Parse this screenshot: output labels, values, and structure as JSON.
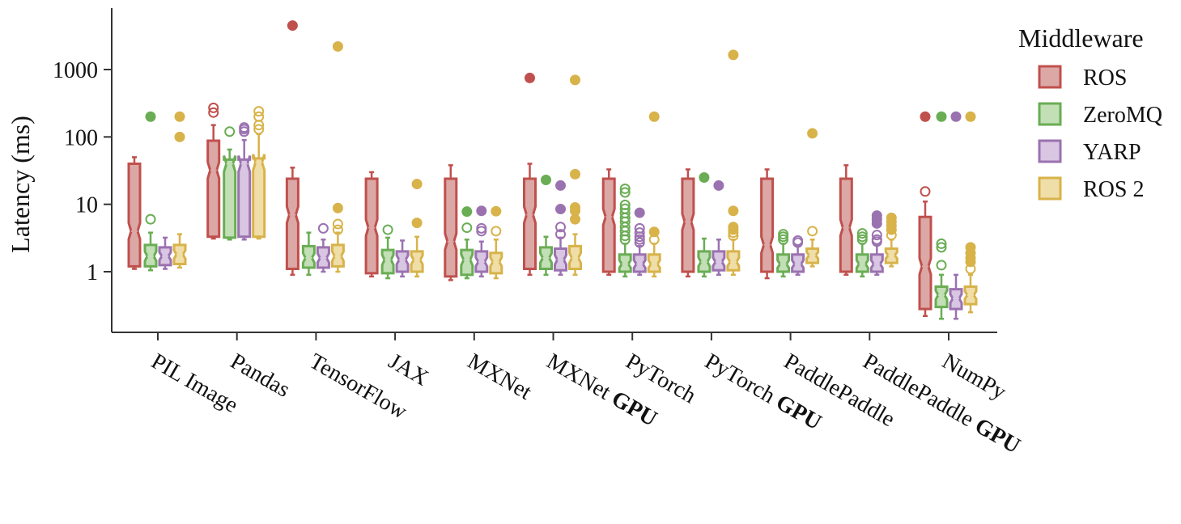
{
  "chart_data": {
    "type": "box",
    "ylabel": "Latency (ms)",
    "yscale": "log",
    "ylim": [
      0.2,
      8000
    ],
    "yticks": [
      1,
      10,
      100,
      1000
    ],
    "ytick_labels": [
      "1",
      "10",
      "100",
      "1000"
    ],
    "categories": [
      {
        "text": "PIL Image",
        "bold": ""
      },
      {
        "text": "Pandas",
        "bold": ""
      },
      {
        "text": "TensorFlow",
        "bold": ""
      },
      {
        "text": "JAX",
        "bold": ""
      },
      {
        "text": "MXNet",
        "bold": ""
      },
      {
        "text": "MXNet ",
        "bold": "GPU"
      },
      {
        "text": "PyTorch",
        "bold": ""
      },
      {
        "text": "PyTorch ",
        "bold": "GPU"
      },
      {
        "text": "PaddlePaddle",
        "bold": ""
      },
      {
        "text": "PaddlePaddle ",
        "bold": "GPU"
      },
      {
        "text": "NumPy",
        "bold": ""
      }
    ],
    "legend_title": "Middleware",
    "legend_position": "right",
    "series": [
      {
        "name": "ROS",
        "color": "#c0504d",
        "fill": "#dba8a6",
        "boxes": [
          {
            "whislo": 1.1,
            "q1": 1.2,
            "med": 4,
            "q3": 40,
            "whishi": 50,
            "outliers": [],
            "far": []
          },
          {
            "whislo": 3.1,
            "q1": 3.3,
            "med": 32,
            "q3": 88,
            "whishi": 150,
            "outliers": [
              230,
              270
            ],
            "far": []
          },
          {
            "whislo": 0.9,
            "q1": 1.1,
            "med": 7,
            "q3": 24,
            "whishi": 35,
            "outliers": [],
            "far": [
              4500
            ]
          },
          {
            "whislo": 0.85,
            "q1": 0.95,
            "med": 4.5,
            "q3": 24,
            "whishi": 30,
            "outliers": [],
            "far": []
          },
          {
            "whislo": 0.75,
            "q1": 0.85,
            "med": 2.8,
            "q3": 24,
            "whishi": 38,
            "outliers": [],
            "far": []
          },
          {
            "whislo": 0.9,
            "q1": 1.1,
            "med": 7,
            "q3": 24,
            "whishi": 40,
            "outliers": [],
            "far": [
              750
            ]
          },
          {
            "whislo": 0.9,
            "q1": 1.0,
            "med": 6.5,
            "q3": 24,
            "whishi": 33,
            "outliers": [],
            "far": []
          },
          {
            "whislo": 0.85,
            "q1": 1.0,
            "med": 5.5,
            "q3": 24,
            "whishi": 33,
            "outliers": [],
            "far": []
          },
          {
            "whislo": 0.8,
            "q1": 1.0,
            "med": 2.5,
            "q3": 24,
            "whishi": 33,
            "outliers": [],
            "far": []
          },
          {
            "whislo": 0.9,
            "q1": 1.0,
            "med": 4.5,
            "q3": 24,
            "whishi": 38,
            "outliers": [],
            "far": []
          },
          {
            "whislo": 0.22,
            "q1": 0.28,
            "med": 1.2,
            "q3": 6.5,
            "whishi": 11,
            "outliers": [
              15.5
            ],
            "far": [
              200
            ]
          }
        ]
      },
      {
        "name": "ZeroMQ",
        "color": "#6aad54",
        "fill": "#c2dfb6",
        "boxes": [
          {
            "whislo": 1.05,
            "q1": 1.2,
            "med": 1.7,
            "q3": 2.5,
            "whishi": 3.8,
            "outliers": [
              6
            ],
            "far": [
              200
            ]
          },
          {
            "whislo": 3.0,
            "q1": 3.2,
            "med": 40,
            "q3": 46,
            "whishi": 65,
            "outliers": [
              120
            ],
            "far": []
          },
          {
            "whislo": 0.9,
            "q1": 1.15,
            "med": 1.6,
            "q3": 2.4,
            "whishi": 3.8,
            "outliers": [],
            "far": []
          },
          {
            "whislo": 0.8,
            "q1": 0.95,
            "med": 1.5,
            "q3": 2.1,
            "whishi": 3.2,
            "outliers": [
              4.2
            ],
            "far": []
          },
          {
            "whislo": 0.8,
            "q1": 0.9,
            "med": 1.5,
            "q3": 2.1,
            "whishi": 3.0,
            "outliers": [
              4.5
            ],
            "far": [
              7.8
            ]
          },
          {
            "whislo": 0.9,
            "q1": 1.1,
            "med": 1.6,
            "q3": 2.3,
            "whishi": 3.3,
            "outliers": [],
            "far": [
              23
            ]
          },
          {
            "whislo": 0.85,
            "q1": 1.0,
            "med": 1.3,
            "q3": 1.8,
            "whishi": 2.6,
            "outliers": [
              3,
              3.4,
              4,
              4.6,
              5.5,
              6.3,
              7.4,
              8.6,
              9.8,
              15,
              17
            ],
            "far": []
          },
          {
            "whislo": 0.85,
            "q1": 1.0,
            "med": 1.4,
            "q3": 2.0,
            "whishi": 3.1,
            "outliers": [],
            "far": [
              25
            ]
          },
          {
            "whislo": 0.85,
            "q1": 1.0,
            "med": 1.3,
            "q3": 1.8,
            "whishi": 2.6,
            "outliers": [
              3.0,
              3.3,
              3.6
            ],
            "far": []
          },
          {
            "whislo": 0.85,
            "q1": 1.0,
            "med": 1.3,
            "q3": 1.8,
            "whishi": 2.6,
            "outliers": [
              3.0,
              3.3,
              3.7
            ],
            "far": []
          },
          {
            "whislo": 0.2,
            "q1": 0.3,
            "med": 0.45,
            "q3": 0.6,
            "whishi": 0.9,
            "outliers": [
              1.25,
              2.3,
              2.6
            ],
            "far": [
              200
            ]
          }
        ]
      },
      {
        "name": "YARP",
        "color": "#9b72b0",
        "fill": "#d8c6e2",
        "boxes": [
          {
            "whislo": 1.1,
            "q1": 1.25,
            "med": 1.7,
            "q3": 2.3,
            "whishi": 3.2,
            "outliers": [],
            "far": []
          },
          {
            "whislo": 3.0,
            "q1": 3.3,
            "med": 40,
            "q3": 46,
            "whishi": 90,
            "outliers": [
              120,
              130,
              138
            ],
            "far": []
          },
          {
            "whislo": 1.0,
            "q1": 1.15,
            "med": 1.6,
            "q3": 2.3,
            "whishi": 3.0,
            "outliers": [
              4.4
            ],
            "far": []
          },
          {
            "whislo": 0.85,
            "q1": 1.0,
            "med": 1.5,
            "q3": 2.0,
            "whishi": 2.9,
            "outliers": [],
            "far": []
          },
          {
            "whislo": 0.85,
            "q1": 1.0,
            "med": 1.4,
            "q3": 2.0,
            "whishi": 2.8,
            "outliers": [
              4.0,
              4.4
            ],
            "far": [
              8
            ]
          },
          {
            "whislo": 0.9,
            "q1": 1.05,
            "med": 1.5,
            "q3": 2.2,
            "whishi": 3.2,
            "outliers": [
              3.6,
              4.6
            ],
            "far": [
              8.5,
              19
            ]
          },
          {
            "whislo": 0.9,
            "q1": 1.0,
            "med": 1.3,
            "q3": 1.8,
            "whishi": 2.4,
            "outliers": [
              2.7,
              3.0,
              3.3,
              3.8,
              4.4
            ],
            "far": [
              7.5
            ]
          },
          {
            "whislo": 0.9,
            "q1": 1.05,
            "med": 1.4,
            "q3": 2.0,
            "whishi": 3.0,
            "outliers": [],
            "far": [
              19
            ]
          },
          {
            "whislo": 0.9,
            "q1": 1.0,
            "med": 1.3,
            "q3": 1.8,
            "whishi": 2.4,
            "outliers": [
              2.7,
              2.9
            ],
            "far": []
          },
          {
            "whislo": 0.9,
            "q1": 1.0,
            "med": 1.3,
            "q3": 1.8,
            "whishi": 2.5,
            "outliers": [
              2.8,
              3.0,
              3.5
            ],
            "far": [
              5.2,
              6,
              6.8
            ]
          },
          {
            "whislo": 0.2,
            "q1": 0.28,
            "med": 0.4,
            "q3": 0.55,
            "whishi": 0.9,
            "outliers": [],
            "far": [
              200
            ]
          }
        ]
      },
      {
        "name": "ROS 2",
        "color": "#d8b34a",
        "fill": "#f0dea9",
        "boxes": [
          {
            "whislo": 1.15,
            "q1": 1.3,
            "med": 1.8,
            "q3": 2.5,
            "whishi": 3.6,
            "outliers": [],
            "far": [
              100,
              200
            ]
          },
          {
            "whislo": 3.1,
            "q1": 3.3,
            "med": 42,
            "q3": 48,
            "whishi": 110,
            "outliers": [
              130,
              150,
              200,
              240
            ],
            "far": []
          },
          {
            "whislo": 1.0,
            "q1": 1.2,
            "med": 1.7,
            "q3": 2.5,
            "whishi": 3.8,
            "outliers": [
              4.2,
              5.1
            ],
            "far": [
              8.8,
              2200
            ]
          },
          {
            "whislo": 0.85,
            "q1": 1.0,
            "med": 1.5,
            "q3": 2.0,
            "whishi": 3.3,
            "outliers": [],
            "far": [
              5.3,
              20
            ]
          },
          {
            "whislo": 0.8,
            "q1": 0.95,
            "med": 1.4,
            "q3": 1.9,
            "whishi": 3.0,
            "outliers": [
              4.0
            ],
            "far": [
              7.9
            ]
          },
          {
            "whislo": 0.9,
            "q1": 1.1,
            "med": 1.6,
            "q3": 2.4,
            "whishi": 3.6,
            "outliers": [],
            "far": [
              6,
              8,
              9,
              28,
              700
            ]
          },
          {
            "whislo": 0.85,
            "q1": 1.0,
            "med": 1.3,
            "q3": 1.8,
            "whishi": 2.6,
            "outliers": [
              3.0
            ],
            "far": [
              3.9,
              200
            ]
          },
          {
            "whislo": 0.9,
            "q1": 1.05,
            "med": 1.4,
            "q3": 2.0,
            "whishi": 3.0,
            "outliers": [
              3.4,
              3.8
            ],
            "far": [
              4.2,
              4.6,
              8.0,
              1650
            ]
          },
          {
            "whislo": 1.2,
            "q1": 1.35,
            "med": 1.75,
            "q3": 2.2,
            "whishi": 3.0,
            "outliers": [
              4.0
            ],
            "far": [
              113
            ]
          },
          {
            "whislo": 1.2,
            "q1": 1.35,
            "med": 1.75,
            "q3": 2.2,
            "whishi": 3.0,
            "outliers": [
              3.5
            ],
            "far": [
              4.2,
              4.8,
              5.5,
              6.3
            ]
          },
          {
            "whislo": 0.25,
            "q1": 0.33,
            "med": 0.45,
            "q3": 0.6,
            "whishi": 0.9,
            "outliers": [
              1.1
            ],
            "far": [
              1.4,
              1.6,
              1.9,
              2.3,
              200
            ]
          }
        ]
      }
    ]
  }
}
